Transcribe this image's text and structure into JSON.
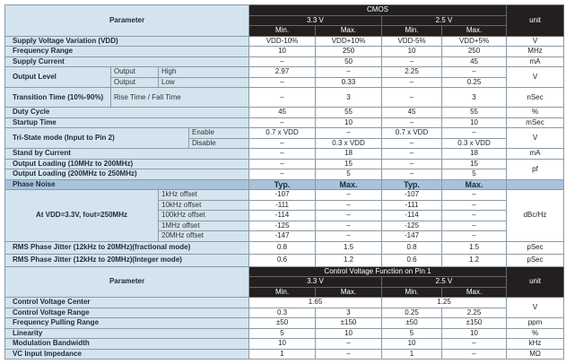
{
  "hdr1": {
    "parameter": "Parameter",
    "group": "CMOS",
    "v33": "3.3 V",
    "v25": "2.5 V",
    "min": "Min.",
    "max": "Max.",
    "unit": "unit"
  },
  "rows": {
    "svv": {
      "label": "Supply Voltage Variation (VDD)",
      "v": [
        "VDD-10%",
        "VDD+10%",
        "VDD-5%",
        "VDD+5%"
      ],
      "unit": "V"
    },
    "freq": {
      "label": "Frequency Range",
      "v": [
        "10",
        "250",
        "10",
        "250"
      ],
      "unit": "MHz"
    },
    "curr": {
      "label": "Supply Current",
      "v": [
        "–",
        "50",
        "–",
        "45"
      ],
      "unit": "mA"
    },
    "ol": {
      "label": "Output Level",
      "high_a": "Output",
      "high_b": "High",
      "low_a": "Output",
      "low_b": "Low",
      "high": [
        "2.97",
        "–",
        "2.25",
        "–"
      ],
      "low": [
        "–",
        "0.33",
        "–",
        "0.25"
      ],
      "unit": "V"
    },
    "tt": {
      "label": "Transition Time (10%-90%)",
      "sub": "Rise Time / Fall Time",
      "v": [
        "–",
        "3",
        "–",
        "3"
      ],
      "unit": "nSec"
    },
    "duty": {
      "label": "Duty Cycle",
      "v": [
        "45",
        "55",
        "45",
        "55"
      ],
      "unit": "%"
    },
    "startup": {
      "label": "Startup Time",
      "v": [
        "–",
        "10",
        "–",
        "10"
      ],
      "unit": "mSec"
    },
    "tri": {
      "label": "Tri-State mode (Input to Pin 2)",
      "enable": "Enable",
      "disable": "Disable",
      "en": [
        "0.7 x VDD",
        "–",
        "0.7 x VDD",
        "–"
      ],
      "dis": [
        "–",
        "0.3 x VDD",
        "–",
        "0.3 x VDD"
      ],
      "unit": "V"
    },
    "standby": {
      "label": "Stand by Current",
      "v": [
        "–",
        "18",
        "–",
        "18"
      ],
      "unit": "mA"
    },
    "load1": {
      "label": "Output Loading (10MHz to 200MHz)",
      "v": [
        "–",
        "15",
        "–",
        "15"
      ],
      "unit": "pf"
    },
    "load2": {
      "label": "Output Loading (200MHz to 250MHz)",
      "v": [
        "–",
        "5",
        "–",
        "5"
      ]
    },
    "pn": {
      "label": "Phase Noise",
      "typ": "Typ.",
      "max": "Max.",
      "cond": "At VDD=3.3V, fout=250MHz",
      "unit": "dBc/Hz",
      "items": [
        {
          "offset": "1kHz offset",
          "v": [
            "-107",
            "–",
            "-107",
            "–"
          ]
        },
        {
          "offset": "10kHz offset",
          "v": [
            "-111",
            "–",
            "-111",
            "–"
          ]
        },
        {
          "offset": "100kHz offset",
          "v": [
            "-114",
            "–",
            "-114",
            "–"
          ]
        },
        {
          "offset": "1MHz offset",
          "v": [
            "-125",
            "–",
            "-125",
            "–"
          ]
        },
        {
          "offset": "20MHz offset",
          "v": [
            "-147",
            "–",
            "-147",
            "–"
          ]
        }
      ]
    },
    "rmsf": {
      "label": "RMS Phase Jitter (12kHz to 20MHz)(fractional mode)",
      "v": [
        "0.8",
        "1.5",
        "0.8",
        "1.5"
      ],
      "unit": "pSec"
    },
    "rmsi": {
      "label": "RMS Phase Jitter (12kHz to 20MHz)(Integer mode)",
      "v": [
        "0.6",
        "1.2",
        "0.6",
        "1.2"
      ],
      "unit": "pSec"
    }
  },
  "hdr2": {
    "parameter": "Parameter",
    "group": "Control Voltage Function on Pin 1",
    "v33": "3.3 V",
    "v25": "2.5 V",
    "min": "Min.",
    "max": "Max.",
    "unit": "unit"
  },
  "rows2": {
    "cvc": {
      "label": "Control Voltage Center",
      "v33": "1.65",
      "v25": "1.25",
      "unit": "V"
    },
    "cvr": {
      "label": "Control Voltage Range",
      "v": [
        "0.3",
        "3",
        "0.25",
        "2.25"
      ]
    },
    "fpr": {
      "label": "Frequency Pulling Range",
      "v": [
        "±50",
        "±150",
        "±50",
        "±150"
      ],
      "unit": "ppm"
    },
    "lin": {
      "label": "Linearity",
      "v": [
        "5",
        "10",
        "5",
        "10"
      ],
      "unit": "%"
    },
    "mb": {
      "label": "Modulation Bandwidth",
      "v": [
        "10",
        "–",
        "10",
        "–"
      ],
      "unit": "kHz"
    },
    "vc": {
      "label": "VC Input Impedance",
      "v": [
        "1",
        "–",
        "1",
        "–"
      ],
      "unit": "MΩ"
    }
  }
}
